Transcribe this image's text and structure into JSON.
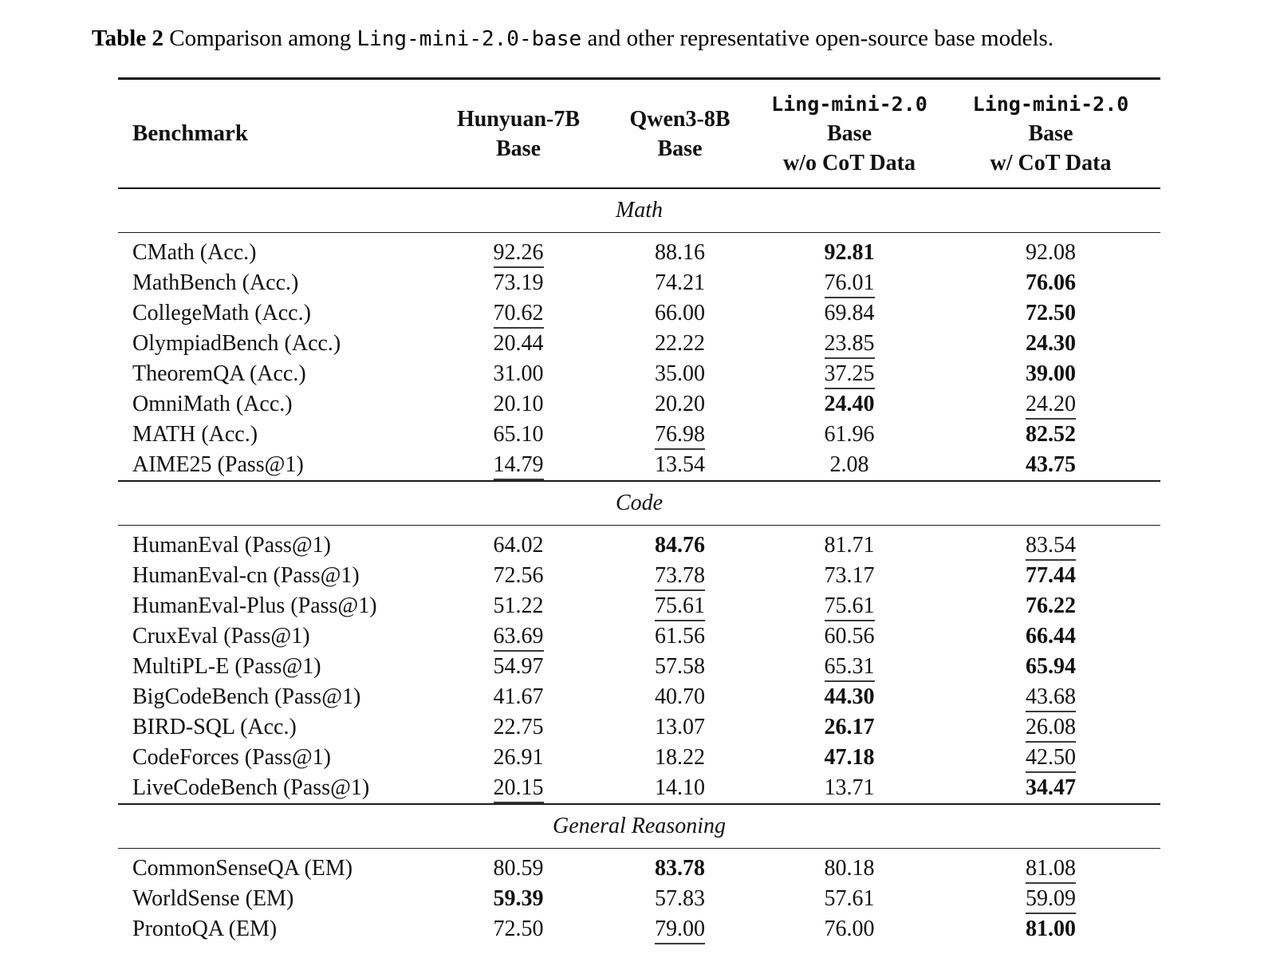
{
  "caption": {
    "label": "Table 2",
    "text_before": "  Comparison among ",
    "code": "Ling-mini-2.0-base",
    "text_after": " and other representative open-source base models."
  },
  "table": {
    "benchmark_header": "Benchmark",
    "columns": [
      {
        "lines": [
          "Hunyuan-7B",
          "Base"
        ],
        "mono_first_line": false
      },
      {
        "lines": [
          "Qwen3-8B",
          "Base"
        ],
        "mono_first_line": false
      },
      {
        "lines": [
          "Ling-mini-2.0",
          "Base",
          "w/o CoT Data"
        ],
        "mono_first_line": true
      },
      {
        "lines": [
          "Ling-mini-2.0",
          "Base",
          "w/ CoT Data"
        ],
        "mono_first_line": true
      }
    ],
    "sections": [
      {
        "label": "Math",
        "rows": [
          {
            "benchmark": "CMath (Acc.)",
            "values": [
              {
                "v": "92.26",
                "style": "underline"
              },
              {
                "v": "88.16",
                "style": "plain"
              },
              {
                "v": "92.81",
                "style": "bold"
              },
              {
                "v": "92.08",
                "style": "plain"
              }
            ]
          },
          {
            "benchmark": "MathBench (Acc.)",
            "values": [
              {
                "v": "73.19",
                "style": "plain"
              },
              {
                "v": "74.21",
                "style": "plain"
              },
              {
                "v": "76.01",
                "style": "underline"
              },
              {
                "v": "76.06",
                "style": "bold"
              }
            ]
          },
          {
            "benchmark": "CollegeMath (Acc.)",
            "values": [
              {
                "v": "70.62",
                "style": "underline"
              },
              {
                "v": "66.00",
                "style": "plain"
              },
              {
                "v": "69.84",
                "style": "plain"
              },
              {
                "v": "72.50",
                "style": "bold"
              }
            ]
          },
          {
            "benchmark": "OlympiadBench (Acc.)",
            "values": [
              {
                "v": "20.44",
                "style": "plain"
              },
              {
                "v": "22.22",
                "style": "plain"
              },
              {
                "v": "23.85",
                "style": "underline"
              },
              {
                "v": "24.30",
                "style": "bold"
              }
            ]
          },
          {
            "benchmark": "TheoremQA (Acc.)",
            "values": [
              {
                "v": "31.00",
                "style": "plain"
              },
              {
                "v": "35.00",
                "style": "plain"
              },
              {
                "v": "37.25",
                "style": "underline"
              },
              {
                "v": "39.00",
                "style": "bold"
              }
            ]
          },
          {
            "benchmark": "OmniMath (Acc.)",
            "values": [
              {
                "v": "20.10",
                "style": "plain"
              },
              {
                "v": "20.20",
                "style": "plain"
              },
              {
                "v": "24.40",
                "style": "bold"
              },
              {
                "v": "24.20",
                "style": "underline"
              }
            ]
          },
          {
            "benchmark": "MATH (Acc.)",
            "values": [
              {
                "v": "65.10",
                "style": "plain"
              },
              {
                "v": "76.98",
                "style": "underline"
              },
              {
                "v": "61.96",
                "style": "plain"
              },
              {
                "v": "82.52",
                "style": "bold"
              }
            ]
          },
          {
            "benchmark": "AIME25 (Pass@1)",
            "values": [
              {
                "v": "14.79",
                "style": "underline"
              },
              {
                "v": "13.54",
                "style": "plain"
              },
              {
                "v": "2.08",
                "style": "plain"
              },
              {
                "v": "43.75",
                "style": "bold"
              }
            ]
          }
        ]
      },
      {
        "label": "Code",
        "rows": [
          {
            "benchmark": "HumanEval (Pass@1)",
            "values": [
              {
                "v": "64.02",
                "style": "plain"
              },
              {
                "v": "84.76",
                "style": "bold"
              },
              {
                "v": "81.71",
                "style": "plain"
              },
              {
                "v": "83.54",
                "style": "underline"
              }
            ]
          },
          {
            "benchmark": "HumanEval-cn (Pass@1)",
            "values": [
              {
                "v": "72.56",
                "style": "plain"
              },
              {
                "v": "73.78",
                "style": "underline"
              },
              {
                "v": "73.17",
                "style": "plain"
              },
              {
                "v": "77.44",
                "style": "bold"
              }
            ]
          },
          {
            "benchmark": "HumanEval-Plus (Pass@1)",
            "values": [
              {
                "v": "51.22",
                "style": "plain"
              },
              {
                "v": "75.61",
                "style": "underline"
              },
              {
                "v": "75.61",
                "style": "underline"
              },
              {
                "v": "76.22",
                "style": "bold"
              }
            ]
          },
          {
            "benchmark": "CruxEval (Pass@1)",
            "values": [
              {
                "v": "63.69",
                "style": "underline"
              },
              {
                "v": "61.56",
                "style": "plain"
              },
              {
                "v": "60.56",
                "style": "plain"
              },
              {
                "v": "66.44",
                "style": "bold"
              }
            ]
          },
          {
            "benchmark": "MultiPL-E (Pass@1)",
            "values": [
              {
                "v": "54.97",
                "style": "plain"
              },
              {
                "v": "57.58",
                "style": "plain"
              },
              {
                "v": "65.31",
                "style": "underline"
              },
              {
                "v": "65.94",
                "style": "bold"
              }
            ]
          },
          {
            "benchmark": "BigCodeBench (Pass@1)",
            "values": [
              {
                "v": "41.67",
                "style": "plain"
              },
              {
                "v": "40.70",
                "style": "plain"
              },
              {
                "v": "44.30",
                "style": "bold"
              },
              {
                "v": "43.68",
                "style": "underline"
              }
            ]
          },
          {
            "benchmark": "BIRD-SQL (Acc.)",
            "values": [
              {
                "v": "22.75",
                "style": "plain"
              },
              {
                "v": "13.07",
                "style": "plain"
              },
              {
                "v": "26.17",
                "style": "bold"
              },
              {
                "v": "26.08",
                "style": "underline"
              }
            ]
          },
          {
            "benchmark": "CodeForces (Pass@1)",
            "values": [
              {
                "v": "26.91",
                "style": "plain"
              },
              {
                "v": "18.22",
                "style": "plain"
              },
              {
                "v": "47.18",
                "style": "bold"
              },
              {
                "v": "42.50",
                "style": "underline"
              }
            ]
          },
          {
            "benchmark": "LiveCodeBench (Pass@1)",
            "values": [
              {
                "v": "20.15",
                "style": "underline"
              },
              {
                "v": "14.10",
                "style": "plain"
              },
              {
                "v": "13.71",
                "style": "plain"
              },
              {
                "v": "34.47",
                "style": "bold"
              }
            ]
          }
        ]
      },
      {
        "label": "General Reasoning",
        "rows": [
          {
            "benchmark": "CommonSenseQA (EM)",
            "values": [
              {
                "v": "80.59",
                "style": "plain"
              },
              {
                "v": "83.78",
                "style": "bold"
              },
              {
                "v": "80.18",
                "style": "plain"
              },
              {
                "v": "81.08",
                "style": "underline"
              }
            ]
          },
          {
            "benchmark": "WorldSense (EM)",
            "values": [
              {
                "v": "59.39",
                "style": "bold"
              },
              {
                "v": "57.83",
                "style": "plain"
              },
              {
                "v": "57.61",
                "style": "plain"
              },
              {
                "v": "59.09",
                "style": "underline"
              }
            ]
          },
          {
            "benchmark": "ProntoQA (EM)",
            "values": [
              {
                "v": "72.50",
                "style": "plain"
              },
              {
                "v": "79.00",
                "style": "underline"
              },
              {
                "v": "76.00",
                "style": "plain"
              },
              {
                "v": "81.00",
                "style": "bold"
              }
            ]
          }
        ]
      }
    ]
  }
}
